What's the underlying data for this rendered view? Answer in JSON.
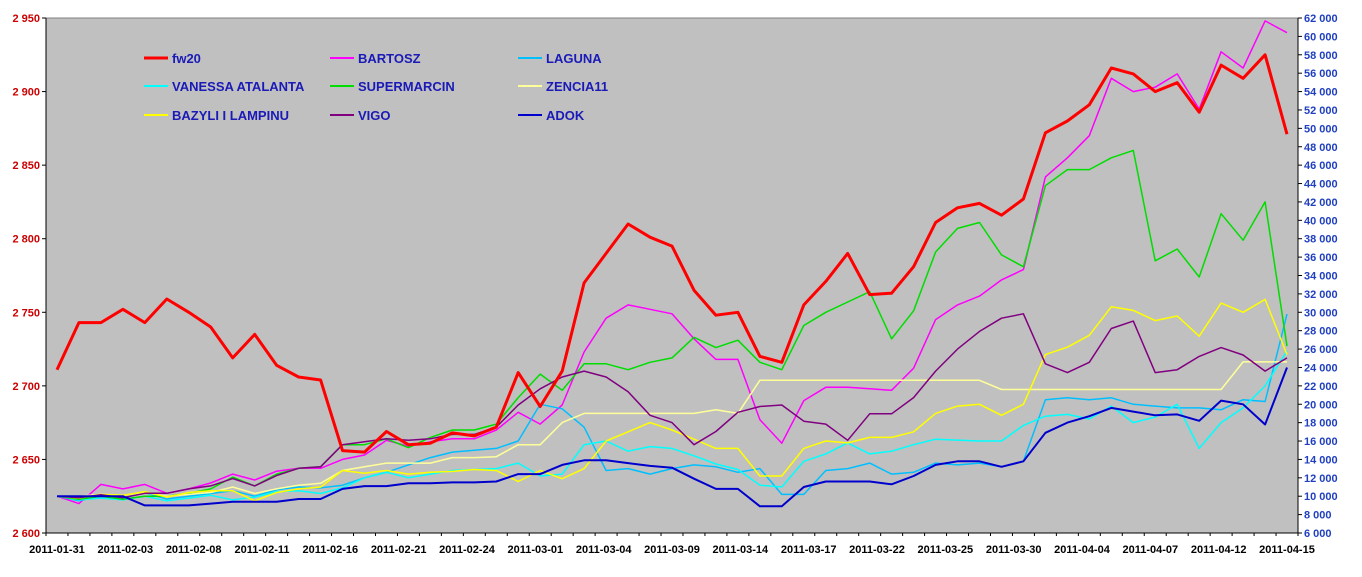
{
  "chart_data": {
    "type": "line",
    "title": "",
    "xlabel": "",
    "ylabel": "",
    "ylim": [
      2600,
      2950
    ],
    "y2lim": [
      6000,
      62000
    ],
    "grid": false,
    "legend_position": "top-left",
    "left_ticks": [
      "2 600",
      "2 650",
      "2 700",
      "2 750",
      "2 800",
      "2 850",
      "2 900",
      "2 950"
    ],
    "left_tick_values": [
      2600,
      2650,
      2700,
      2750,
      2800,
      2850,
      2900,
      2950
    ],
    "right_ticks": [
      "6 000",
      "8 000",
      "10 000",
      "12 000",
      "14 000",
      "16 000",
      "18 000",
      "20 000",
      "22 000",
      "24 000",
      "26 000",
      "28 000",
      "30 000",
      "32 000",
      "34 000",
      "36 000",
      "38 000",
      "40 000",
      "42 000",
      "44 000",
      "46 000",
      "48 000",
      "50 000",
      "52 000",
      "54 000",
      "56 000",
      "58 000",
      "60 000",
      "62 000"
    ],
    "right_tick_values": [
      6000,
      8000,
      10000,
      12000,
      14000,
      16000,
      18000,
      20000,
      22000,
      24000,
      26000,
      28000,
      30000,
      32000,
      34000,
      36000,
      38000,
      40000,
      42000,
      44000,
      46000,
      48000,
      50000,
      52000,
      54000,
      56000,
      58000,
      60000,
      62000
    ],
    "x_tick_labels": [
      "2011-01-31",
      "2011-02-03",
      "2011-02-08",
      "2011-02-11",
      "2011-02-16",
      "2011-02-21",
      "2011-02-24",
      "2011-03-01",
      "2011-03-04",
      "2011-03-09",
      "2011-03-14",
      "2011-03-17",
      "2011-03-22",
      "2011-03-25",
      "2011-03-30",
      "2011-04-04",
      "2011-04-07",
      "2011-04-12",
      "2011-04-15"
    ],
    "colors": {
      "plot_background": "#c0c0c0",
      "left_axis": "#cc0000",
      "right_axis": "#1f3fbf"
    },
    "series": [
      {
        "name": "fw20",
        "color": "#ff0000",
        "width": 3,
        "axis": "left",
        "values": [
          2711,
          2743,
          2743,
          2752,
          2743,
          2759,
          2750,
          2740,
          2719,
          2735,
          2714,
          2706,
          2704,
          2656,
          2655,
          2669,
          2660,
          2661,
          2668,
          2666,
          2672,
          2709,
          2686,
          2710,
          2770,
          2790,
          2810,
          2801,
          2795,
          2765,
          2748,
          2750,
          2720,
          2716,
          2755,
          2771,
          2790,
          2762,
          2763,
          2781,
          2811,
          2821,
          2824,
          2816,
          2827,
          2872,
          2880,
          2891,
          2916,
          2912,
          2900,
          2906,
          2886,
          2918,
          2909,
          2925,
          2871
        ]
      },
      {
        "name": "BARTOSZ",
        "color": "#ff00ff",
        "width": 1.5,
        "axis": "left",
        "values": [
          2625,
          2620,
          2633,
          2630,
          2633,
          2627,
          2630,
          2634,
          2640,
          2636,
          2642,
          2644,
          2644,
          2650,
          2653,
          2663,
          2659,
          2662,
          2664,
          2664,
          2670,
          2682,
          2674,
          2687,
          2723,
          2746,
          2755,
          2752,
          2749,
          2732,
          2718,
          2718,
          2677,
          2661,
          2690,
          2699,
          2699,
          2698,
          2697,
          2712,
          2745,
          2755,
          2761,
          2772,
          2779,
          2842,
          2855,
          2870,
          2909,
          2900,
          2903,
          2912,
          2888,
          2927,
          2916,
          2948,
          2940
        ]
      },
      {
        "name": "LAGUNA",
        "color": "#00bfff",
        "width": 1.5,
        "axis": "right",
        "values": [
          10000,
          9500,
          10000,
          9800,
          10400,
          9700,
          10000,
          10300,
          10600,
          10000,
          10700,
          11000,
          10900,
          11200,
          12000,
          12600,
          13400,
          14200,
          14800,
          15000,
          15200,
          16000,
          20000,
          19500,
          17500,
          12800,
          13000,
          12400,
          13000,
          13400,
          13200,
          12600,
          13000,
          10200,
          10200,
          12800,
          13000,
          13600,
          12400,
          12600,
          13600,
          13400,
          13600,
          13200,
          13800,
          20500,
          20700,
          20500,
          20700,
          20000,
          19800,
          19600,
          19600,
          19400,
          20500,
          20300,
          29800
        ]
      },
      {
        "name": "VANESSA ATALANTA",
        "color": "#00ffff",
        "width": 1.5,
        "axis": "right",
        "values": [
          10000,
          9600,
          9800,
          9600,
          10000,
          9500,
          9800,
          10100,
          9600,
          9900,
          10500,
          10600,
          10300,
          10900,
          12000,
          12600,
          12000,
          12400,
          12800,
          12900,
          13000,
          13600,
          12200,
          12400,
          15600,
          16000,
          14900,
          15400,
          15200,
          14400,
          13500,
          12900,
          11200,
          11000,
          13800,
          14600,
          15800,
          14600,
          14900,
          15600,
          16200,
          16100,
          16000,
          16000,
          17700,
          18700,
          18900,
          18400,
          19800,
          18000,
          18600,
          20000,
          15200,
          18000,
          19600,
          22000,
          25800
        ]
      },
      {
        "name": "SUPERMARCIN",
        "color": "#00dd00",
        "width": 1.5,
        "axis": "left",
        "values": [
          2625,
          2623,
          2625,
          2623,
          2625,
          2625,
          2627,
          2630,
          2638,
          2632,
          2640,
          2644,
          2645,
          2660,
          2660,
          2664,
          2658,
          2665,
          2670,
          2670,
          2674,
          2692,
          2708,
          2697,
          2715,
          2715,
          2711,
          2716,
          2719,
          2733,
          2726,
          2731,
          2716,
          2711,
          2741,
          2750,
          2757,
          2764,
          2732,
          2751,
          2791,
          2807,
          2811,
          2789,
          2781,
          2836,
          2847,
          2847,
          2855,
          2860,
          2785,
          2793,
          2774,
          2817,
          2799,
          2825,
          2727
        ]
      },
      {
        "name": "ZENCIA11",
        "color": "#ffff99",
        "width": 1.5,
        "axis": "right",
        "values": [
          10000,
          10000,
          10200,
          10100,
          10400,
          10000,
          10200,
          10400,
          11000,
          10300,
          10800,
          11200,
          11400,
          12800,
          13200,
          13600,
          13600,
          13600,
          14200,
          14200,
          14300,
          15600,
          15600,
          18000,
          19000,
          19000,
          19000,
          19000,
          19000,
          19000,
          19400,
          19000,
          22600,
          22600,
          22600,
          22600,
          22600,
          22600,
          22600,
          22600,
          22600,
          22600,
          22600,
          21600,
          21600,
          21600,
          21600,
          21600,
          21600,
          21600,
          21600,
          21600,
          21600,
          21600,
          24600,
          24600,
          24600
        ]
      },
      {
        "name": "BAZYLI I LAMPINU",
        "color": "#ffff00",
        "width": 1.5,
        "axis": "right",
        "values": [
          10000,
          9800,
          10200,
          10100,
          10500,
          9900,
          10400,
          10600,
          10600,
          9500,
          10400,
          10800,
          11000,
          12800,
          12500,
          12800,
          12400,
          12600,
          12700,
          12900,
          12800,
          11600,
          12800,
          11900,
          13000,
          16000,
          17000,
          18000,
          17200,
          16200,
          15200,
          15200,
          12200,
          12200,
          15200,
          16000,
          15800,
          16400,
          16400,
          17000,
          19000,
          19800,
          20000,
          18800,
          20000,
          25400,
          26200,
          27500,
          30600,
          30200,
          29100,
          29600,
          27400,
          31000,
          30000,
          31400,
          25400
        ]
      },
      {
        "name": "VIGO",
        "color": "#800080",
        "width": 1.5,
        "axis": "left",
        "values": [
          2625,
          2624,
          2626,
          2624,
          2627,
          2627,
          2630,
          2632,
          2637,
          2632,
          2639,
          2644,
          2645,
          2660,
          2662,
          2664,
          2663,
          2664,
          2667,
          2667,
          2672,
          2687,
          2698,
          2706,
          2710,
          2706,
          2696,
          2680,
          2675,
          2660,
          2669,
          2682,
          2686,
          2687,
          2676,
          2674,
          2663,
          2681,
          2681,
          2692,
          2710,
          2725,
          2737,
          2746,
          2749,
          2715,
          2709,
          2716,
          2739,
          2744,
          2709,
          2711,
          2720,
          2726,
          2721,
          2710,
          2719
        ]
      },
      {
        "name": "ADOK",
        "color": "#0000cc",
        "width": 2,
        "axis": "right",
        "values": [
          10000,
          10000,
          10000,
          10000,
          9000,
          9000,
          9000,
          9200,
          9400,
          9400,
          9400,
          9700,
          9700,
          10800,
          11100,
          11100,
          11400,
          11400,
          11500,
          11500,
          11600,
          12400,
          12400,
          13400,
          13900,
          13900,
          13600,
          13300,
          13100,
          11900,
          10800,
          10800,
          8900,
          8900,
          11000,
          11600,
          11600,
          11600,
          11300,
          12200,
          13400,
          13800,
          13800,
          13200,
          13800,
          16900,
          18000,
          18700,
          19600,
          19200,
          18800,
          18900,
          18200,
          20400,
          20000,
          17800,
          24000
        ]
      }
    ]
  }
}
